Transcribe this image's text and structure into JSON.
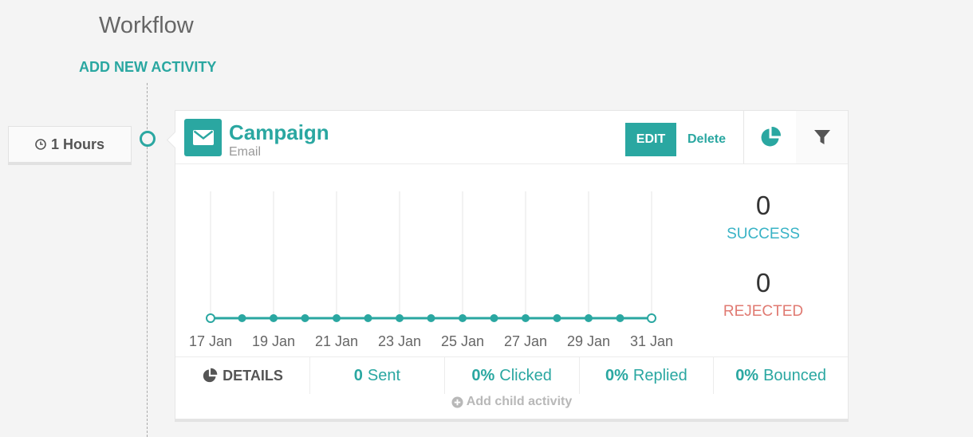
{
  "page": {
    "title": "Workflow",
    "add_activity_label": "ADD NEW ACTIVITY"
  },
  "delay": {
    "value": "1 Hours",
    "icon": "clock-icon"
  },
  "activity": {
    "title": "Campaign",
    "subtitle": "Email",
    "edit_label": "EDIT",
    "delete_label": "Delete",
    "accent_color": "#2aa7a1",
    "icons": [
      "envelope-icon",
      "pie-chart-icon",
      "filter-icon"
    ]
  },
  "chart_data": {
    "type": "line",
    "x": [
      "17 Jan",
      "18 Jan",
      "19 Jan",
      "20 Jan",
      "21 Jan",
      "22 Jan",
      "23 Jan",
      "24 Jan",
      "25 Jan",
      "26 Jan",
      "27 Jan",
      "28 Jan",
      "29 Jan",
      "30 Jan",
      "31 Jan"
    ],
    "tick_labels": [
      "17 Jan",
      "19 Jan",
      "21 Jan",
      "23 Jan",
      "25 Jan",
      "27 Jan",
      "29 Jan",
      "31 Jan"
    ],
    "values": [
      0,
      0,
      0,
      0,
      0,
      0,
      0,
      0,
      0,
      0,
      0,
      0,
      0,
      0,
      0
    ],
    "ylim": [
      0,
      1
    ],
    "grid": "vertical",
    "color": "#2aa7a1"
  },
  "metrics": {
    "success": {
      "value": "0",
      "label": "SUCCESS",
      "color": "#39b3c6"
    },
    "rejected": {
      "value": "0",
      "label": "REJECTED",
      "color": "#e07a72"
    }
  },
  "footer": {
    "details_label": "DETAILS",
    "sent": {
      "value": "0",
      "label": "Sent"
    },
    "clicked": {
      "value": "0%",
      "label": "Clicked"
    },
    "replied": {
      "value": "0%",
      "label": "Replied"
    },
    "bounced": {
      "value": "0%",
      "label": "Bounced"
    }
  },
  "add_child_label": "Add child activity"
}
